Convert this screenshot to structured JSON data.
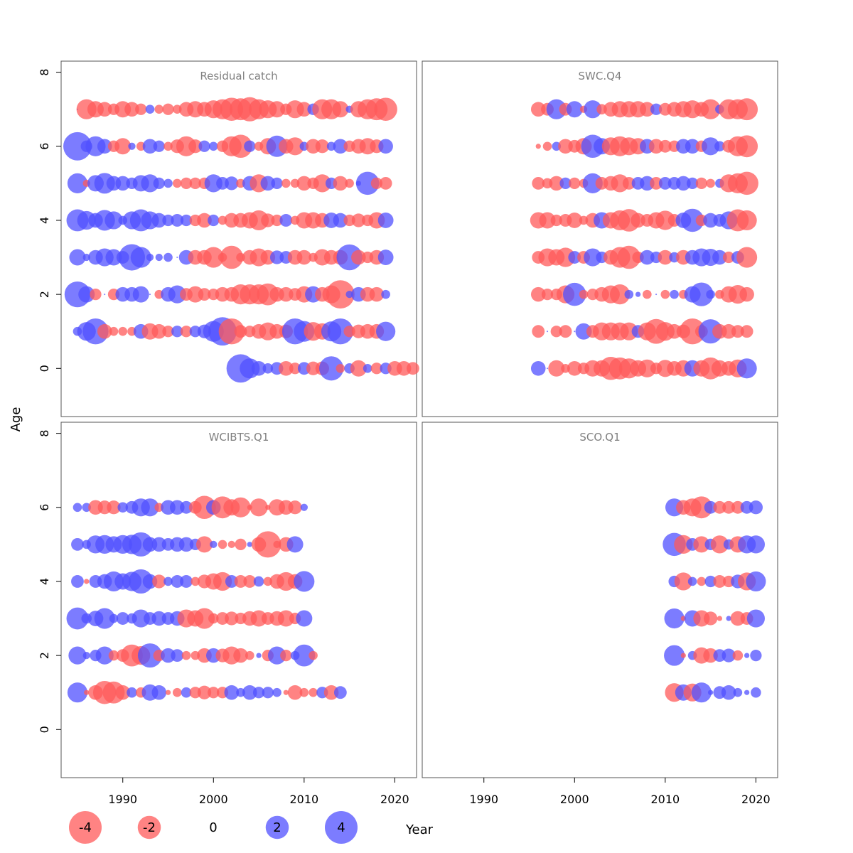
{
  "chart_data": {
    "type": "scatter",
    "subtype": "bubble",
    "xlabel": "Year",
    "ylabel": "Age",
    "xlim": [
      1983.2,
      2022.4
    ],
    "ylim": [
      -1.3,
      8.3
    ],
    "x_ticks": [
      1990,
      2000,
      2010,
      2020
    ],
    "y_ticks": [
      0,
      2,
      4,
      6,
      8
    ],
    "colors": {
      "positive": "#5050ff",
      "negative": "#ff5a5a",
      "opacity": 0.75
    },
    "legend": [
      {
        "label": "-4",
        "value": -4
      },
      {
        "label": "-2",
        "value": -2
      },
      {
        "label": "0",
        "value": 0
      },
      {
        "label": "2",
        "value": 2
      },
      {
        "label": "4",
        "value": 4
      }
    ],
    "panels": [
      {
        "title": "Residual catch",
        "start_year": 1985,
        "rows": {
          "7": [
            0.0,
            -1.5,
            -1.0,
            -0.8,
            -0.5,
            -1.0,
            -0.8,
            -0.5,
            0.3,
            -0.3,
            -0.5,
            -0.3,
            -0.8,
            -1.0,
            -0.8,
            -1.2,
            -1.5,
            -2.0,
            -1.8,
            -2.2,
            -1.5,
            -1.2,
            -1.0,
            -0.5,
            -1.2,
            -0.8,
            0.5,
            -1.5,
            -1.5,
            -1.0,
            0.2,
            -1.0,
            -1.5,
            -1.8,
            -2.0
          ],
          "6": [
            3.0,
            0.5,
            1.5,
            0.8,
            -0.5,
            -1.0,
            0.2,
            -0.3,
            0.8,
            0.5,
            -0.3,
            -0.7,
            -1.5,
            -0.7,
            0.5,
            0.3,
            -0.5,
            -1.5,
            -2.0,
            0.5,
            -0.3,
            -1.0,
            1.7,
            -0.8,
            -1.2,
            0.3,
            -0.8,
            -0.7,
            0.3,
            0.8,
            -0.5,
            -0.8,
            -1.0,
            -0.7,
            0.8
          ],
          "5": [
            1.5,
            -0.2,
            1.0,
            1.6,
            0.8,
            0.8,
            0.5,
            1.0,
            1.2,
            0.5,
            0.3,
            -0.3,
            -0.5,
            -0.5,
            -0.5,
            1.2,
            0.6,
            0.7,
            -0.3,
            0.8,
            -1.2,
            0.8,
            0.5,
            -0.3,
            -0.3,
            -0.8,
            -0.5,
            -1.2,
            0.5,
            -0.8,
            -0.3,
            0.1,
            2.0,
            -0.5,
            -0.6
          ],
          "4": [
            1.8,
            1.3,
            0.8,
            1.6,
            1.2,
            0.3,
            1.2,
            1.8,
            1.2,
            0.8,
            0.5,
            0.6,
            0.5,
            -0.5,
            -0.8,
            0.5,
            -0.3,
            -0.8,
            -0.8,
            -1.0,
            -1.5,
            -0.7,
            -0.5,
            0.6,
            -0.3,
            -1.0,
            -1.0,
            -0.8,
            0.9,
            0.8,
            -0.5,
            -0.7,
            -0.5,
            -1.0,
            0.9
          ],
          "3": [
            1.0,
            0.2,
            0.8,
            1.2,
            1.0,
            0.6,
            2.6,
            1.6,
            0.2,
            0.2,
            0.3,
            0.0,
            0.8,
            -0.8,
            -0.8,
            -1.6,
            -0.3,
            -2.0,
            -0.3,
            -0.8,
            -1.2,
            -0.8,
            0.7,
            0.6,
            -0.8,
            -0.8,
            -0.3,
            -1.0,
            -0.8,
            -0.8,
            2.5,
            -0.8,
            -0.5,
            -0.8,
            0.9
          ],
          "2": [
            2.5,
            1.0,
            -0.5,
            0.0,
            -0.5,
            0.8,
            0.8,
            1.0,
            0.0,
            -0.3,
            0.8,
            1.2,
            -0.6,
            -1.0,
            -0.6,
            -0.5,
            -0.8,
            -0.8,
            -1.5,
            -1.5,
            -1.5,
            -1.8,
            -0.8,
            -0.8,
            -0.6,
            -1.0,
            1.0,
            -0.8,
            -1.2,
            -3.0,
            0.2,
            0.8,
            -0.8,
            -0.8,
            0.3
          ],
          "1": [
            0.3,
            1.3,
            2.5,
            -0.8,
            -0.3,
            -0.3,
            -0.3,
            0.8,
            -1.0,
            -0.8,
            -0.5,
            0.5,
            -0.5,
            0.5,
            0.7,
            1.6,
            3.0,
            -2.5,
            -0.6,
            -0.5,
            -0.8,
            -1.2,
            -0.8,
            -0.7,
            2.5,
            1.6,
            -1.3,
            -1.0,
            1.5,
            2.5,
            -0.5,
            -0.7,
            -0.8,
            -0.8,
            1.4
          ],
          "0": [
            null,
            null,
            null,
            null,
            null,
            null,
            null,
            null,
            null,
            null,
            null,
            null,
            null,
            null,
            null,
            null,
            null,
            null,
            3.0,
            1.5,
            0.8,
            0.4,
            0.6,
            -0.8,
            -0.5,
            0.6,
            -0.7,
            -0.7,
            2.2,
            -0.3,
            0.4,
            -1.0,
            0.3,
            -0.5,
            0.5,
            -0.8,
            -0.8,
            -0.6
          ]
        }
      },
      {
        "title": "SWC.Q4",
        "start_year": 1996,
        "rows": {
          "7": [
            -0.8,
            -0.6,
            1.5,
            -0.6,
            1.0,
            -0.2,
            1.2,
            -0.4,
            -0.8,
            -1.0,
            -1.0,
            -1.0,
            -0.8,
            0.5,
            -0.6,
            -0.8,
            -1.0,
            -1.2,
            -0.8,
            -1.5,
            0.3,
            -1.5,
            -1.5,
            -1.8
          ],
          "6": [
            -0.1,
            -0.3,
            0.3,
            -0.8,
            -0.6,
            -1.0,
            2.0,
            1.0,
            -1.2,
            -1.5,
            -1.2,
            -1.0,
            0.8,
            -0.8,
            -0.6,
            -0.5,
            0.8,
            0.8,
            -0.5,
            1.2,
            0.4,
            -0.6,
            -1.5,
            -1.8
          ],
          "5": [
            -0.6,
            -0.4,
            -0.8,
            0.5,
            -0.5,
            -0.3,
            1.5,
            -0.6,
            -0.8,
            -1.2,
            -0.6,
            0.6,
            0.8,
            -0.6,
            0.6,
            0.6,
            0.8,
            0.5,
            -0.5,
            -0.3,
            0.3,
            -1.2,
            -1.5,
            -2.0
          ],
          "4": [
            -1.0,
            -1.0,
            -0.5,
            -0.6,
            -0.9,
            -0.3,
            -0.8,
            1.0,
            -1.0,
            -1.5,
            -1.9,
            -0.8,
            -0.6,
            -1.0,
            -1.4,
            -0.6,
            0.9,
            2.0,
            -0.5,
            0.8,
            0.6,
            1.2,
            -1.8,
            -1.5
          ],
          "3": [
            -0.6,
            -1.2,
            -1.0,
            -1.4,
            0.6,
            -0.6,
            1.2,
            0.5,
            -0.8,
            -1.6,
            -2.0,
            -0.5,
            0.8,
            0.5,
            -0.8,
            0.4,
            -0.8,
            0.8,
            1.2,
            1.1,
            0.8,
            -0.5,
            0.6,
            -1.6
          ],
          "2": [
            -0.8,
            -0.5,
            -0.5,
            -1.2,
            2.0,
            -0.3,
            -0.5,
            -0.8,
            -1.2,
            -1.5,
            0.3,
            0.1,
            -0.3,
            0.0,
            -0.3,
            0.3,
            -0.3,
            1.0,
            2.1,
            0.3,
            -0.3,
            -1.0,
            -1.3,
            -0.8
          ],
          "1": [
            -0.6,
            0.0,
            -0.5,
            -0.6,
            0.0,
            1.0,
            -0.6,
            -1.2,
            -1.2,
            -1.2,
            -1.2,
            0.6,
            -1.2,
            -2.3,
            -1.3,
            -0.8,
            -0.7,
            -2.5,
            -0.6,
            2.2,
            -0.8,
            -0.8,
            -0.6,
            -0.6
          ],
          "0": [
            0.8,
            0.0,
            -1.0,
            -0.3,
            -0.8,
            -0.5,
            -1.0,
            -1.0,
            -2.0,
            -1.8,
            -1.5,
            -1.0,
            -1.2,
            -0.5,
            -1.1,
            -0.8,
            -1.0,
            1.0,
            -1.0,
            -1.8,
            -1.0,
            -0.8,
            -1.2,
            1.5
          ]
        }
      },
      {
        "title": "WCIBTS.Q1",
        "start_year": 1985,
        "rows": {
          "6": [
            0.3,
            0.3,
            -0.8,
            -0.7,
            -0.7,
            0.4,
            0.6,
            1.2,
            1.2,
            -0.3,
            0.8,
            0.8,
            0.6,
            -0.6,
            -2.0,
            0.8,
            -1.8,
            -1.0,
            -1.5,
            -0.1,
            -1.2,
            -0.1,
            -1.0,
            -0.8,
            -0.7,
            0.2
          ],
          "5": [
            0.6,
            0.3,
            1.2,
            1.3,
            1.0,
            1.3,
            1.4,
            2.2,
            0.8,
            0.8,
            0.6,
            0.8,
            0.8,
            0.5,
            -1.0,
            0.2,
            -0.3,
            -0.2,
            -0.5,
            0.1,
            -0.8,
            -2.6,
            -0.2,
            -0.8,
            1.0
          ],
          "4": [
            0.6,
            -0.1,
            0.6,
            0.8,
            1.5,
            1.0,
            1.4,
            2.2,
            0.8,
            -0.7,
            0.3,
            0.6,
            0.6,
            -0.3,
            -0.7,
            -1.0,
            -1.3,
            0.6,
            -0.6,
            -0.6,
            0.4,
            -0.3,
            -0.8,
            -1.3,
            -0.8,
            1.6
          ],
          "3": [
            1.8,
            0.4,
            0.9,
            1.6,
            0.3,
            0.6,
            0.4,
            1.2,
            0.6,
            0.8,
            0.6,
            0.8,
            -1.2,
            -1.0,
            -1.6,
            -0.4,
            -0.6,
            -0.7,
            -0.5,
            -0.8,
            -1.0,
            -0.6,
            -0.8,
            -1.0,
            -0.5,
            1.0
          ],
          "2": [
            1.2,
            0.2,
            0.5,
            1.2,
            -0.4,
            -0.6,
            -1.8,
            -1.3,
            2.2,
            -0.5,
            0.8,
            0.6,
            -0.3,
            -0.3,
            -0.8,
            0.8,
            -0.7,
            -1.2,
            -0.8,
            -0.3,
            0.1,
            -0.5,
            1.2,
            -0.5,
            0.3,
            1.8,
            -0.3
          ],
          "1": [
            1.5,
            -0.1,
            -0.8,
            -2.0,
            -1.8,
            -0.8,
            0.4,
            -0.4,
            1.0,
            0.8,
            -0.1,
            -0.3,
            0.4,
            -0.5,
            -0.7,
            -0.5,
            -0.5,
            0.8,
            0.3,
            0.8,
            0.5,
            0.5,
            0.3,
            -0.1,
            -0.8,
            -0.3,
            -0.3,
            0.5,
            -0.8,
            0.6
          ]
        }
      },
      {
        "title": "SCO.Q1",
        "start_year": 2011,
        "rows": {
          "6": [
            1.2,
            -0.8,
            -1.2,
            -1.8,
            0.6,
            -0.6,
            -0.6,
            -0.6,
            0.6,
            0.7
          ],
          "5": [
            2.0,
            -1.3,
            0.6,
            -1.0,
            0.5,
            -1.2,
            0.4,
            -1.0,
            1.2,
            1.2
          ],
          "4": [
            0.5,
            -1.2,
            0.3,
            -0.3,
            0.5,
            -0.6,
            -0.5,
            0.7,
            -1.2,
            1.5
          ],
          "3": [
            1.5,
            -0.1,
            1.0,
            -1.0,
            -0.7,
            -0.1,
            0.1,
            -0.8,
            -0.6,
            1.2
          ],
          "2": [
            1.6,
            -0.1,
            0.3,
            -1.0,
            -0.8,
            0.6,
            0.7,
            -0.4,
            0.1,
            0.5
          ],
          "1": [
            -1.3,
            1.0,
            -1.2,
            1.5,
            0.1,
            0.6,
            0.8,
            0.3,
            0.1,
            0.4
          ]
        }
      }
    ]
  }
}
